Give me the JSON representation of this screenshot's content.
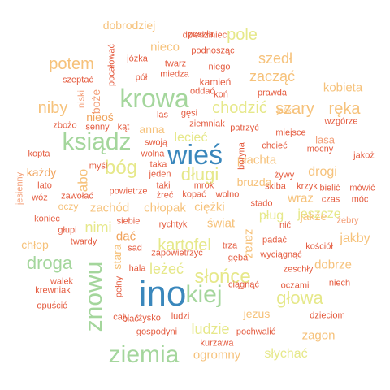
{
  "colors": {
    "blue": "#3a87bc",
    "green": "#a4d69c",
    "yellow": "#e6e88a",
    "light_orange": "#f6c27b",
    "orange": "#f0a35c",
    "red": "#e45b3f",
    "salmon": "#f3a07a",
    "dark_orange": "#ee8a3a"
  },
  "words": [
    "ino",
    "ziemia",
    "krowa",
    "wieś",
    "ksiądz",
    "znowu",
    "kiej",
    "słońce",
    "głowa",
    "droga",
    "kartofel",
    "chodzić",
    "bóg",
    "długi",
    "pole",
    "potem",
    "niby",
    "ręka",
    "szary",
    "szedł",
    "zacząć",
    "nimi",
    "leżeć",
    "ludzie",
    "dobrodziej",
    "nieco",
    "drogi",
    "jakby",
    "pług",
    "jeszcze",
    "kobieta",
    "słychać",
    "ogromny",
    "zagon",
    "jezus",
    "dobrze",
    "płachta",
    "świat",
    "wraz",
    "jakże",
    "zachód",
    "chłopak",
    "ciężki",
    "chłop",
    "abo",
    "zaraz",
    "jaśki",
    "dać",
    "stara",
    "anna",
    "lecieć",
    "nieoś",
    "każdy",
    "koniec",
    "oczy",
    "dziedziniec",
    "poszła",
    "podnosząc",
    "twarz",
    "jóżka",
    "pół",
    "miedza",
    "niego",
    "kamień",
    "koń",
    "prawda",
    "wzgórze",
    "miejsce",
    "lasa",
    "mocny",
    "jakoż",
    "bielić",
    "mówić",
    "móc",
    "czas",
    "kościół",
    "żebry",
    "zeschły",
    "niech",
    "oczami",
    "ciągnąć",
    "wyciągnąć",
    "padać",
    "gęba",
    "trza",
    "zapowietrzyć",
    "sad",
    "hala",
    "pełny",
    "cały",
    "siać",
    "rżysko",
    "ludzi",
    "gospodyni",
    "dzieciom",
    "pochwalić",
    "kurzawa",
    "krewniak",
    "opuścić",
    "walek",
    "twardy",
    "głupi",
    "zawołać",
    "wóz",
    "lato",
    "jesienny",
    "kopta",
    "zbożo",
    "senny",
    "kąt",
    "szeptać",
    "pocałować",
    "niski",
    "boże",
    "las",
    "gęsi",
    "ziemniak",
    "patrzyć",
    "chcieć",
    "borynа",
    "żywy",
    "krzyk",
    "skiba",
    "stado",
    "bruzda",
    "wolno",
    "kopać",
    "żreć",
    "taki",
    "jeden",
    "wolna",
    "taka",
    "swoją",
    "powietrze",
    "siebie",
    "rychtyk",
    "mrok",
    "oddać",
    "nić",
    "myśl"
  ]
}
